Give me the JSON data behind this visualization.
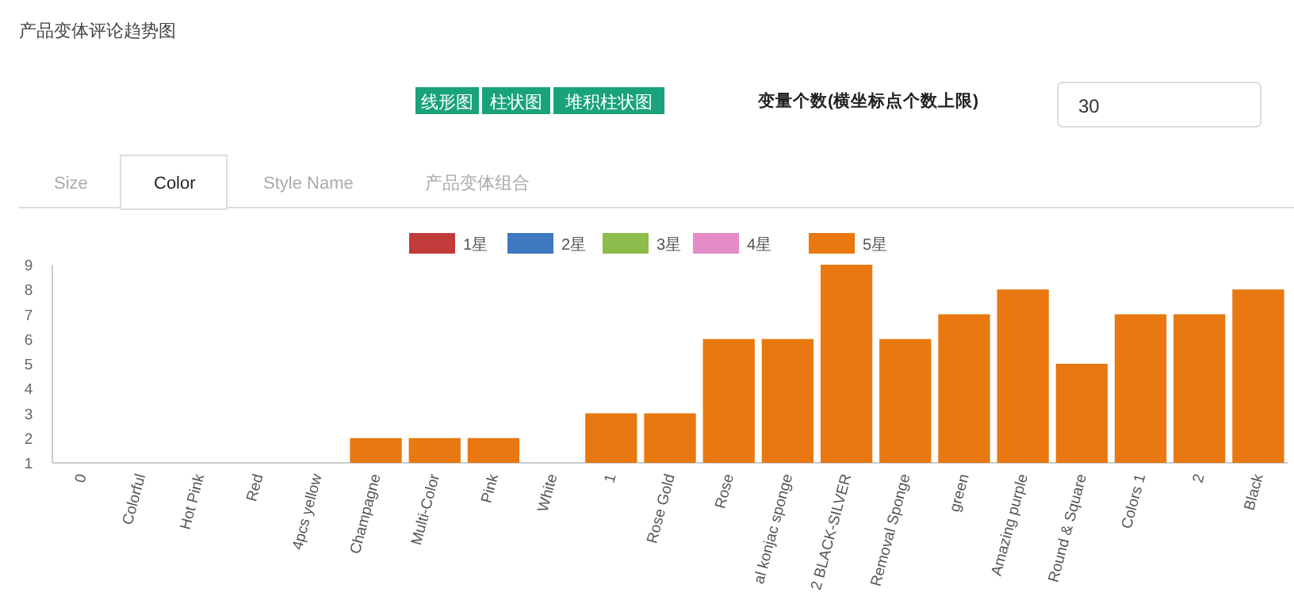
{
  "chart_data": {
    "type": "bar",
    "title": "产品变体评论趋势图",
    "annotations": [
      "线形图",
      "柱状图",
      "堆积柱状图",
      "变量个数(横坐标点个数上限)",
      "30",
      "Size",
      "Color",
      "Style Name",
      "产品变体组合"
    ],
    "categories": [
      "0",
      "Colorful",
      "Hot Pink",
      "Red",
      "4pcs yellow",
      "Champagne",
      "Multi-Color",
      "Pink",
      "White",
      "1",
      "Rose Gold",
      "Rose",
      "al konjac sponge",
      "2 BLACK-SILVER",
      "Removal Sponge",
      "green",
      "Amazing purple",
      "Round & Square",
      "Colors 1",
      "2",
      "Black"
    ],
    "series": [
      {
        "name": "1星",
        "color": "#c23b3b",
        "values": [
          null,
          null,
          null,
          null,
          null,
          null,
          null,
          null,
          null,
          null,
          null,
          null,
          null,
          null,
          null,
          null,
          null,
          null,
          null,
          null,
          null
        ]
      },
      {
        "name": "2星",
        "color": "#3f78c1",
        "values": [
          null,
          null,
          null,
          null,
          null,
          null,
          null,
          null,
          null,
          null,
          null,
          null,
          null,
          null,
          null,
          null,
          null,
          null,
          null,
          null,
          null
        ]
      },
      {
        "name": "3星",
        "color": "#8dbb4c",
        "values": [
          null,
          null,
          null,
          null,
          null,
          null,
          null,
          null,
          null,
          null,
          null,
          null,
          null,
          null,
          null,
          null,
          null,
          null,
          null,
          null,
          null
        ]
      },
      {
        "name": "4星",
        "color": "#e58cc8",
        "values": [
          null,
          null,
          null,
          null,
          null,
          null,
          null,
          null,
          null,
          null,
          null,
          null,
          null,
          null,
          null,
          null,
          null,
          null,
          null,
          null,
          null
        ]
      },
      {
        "name": "5星",
        "color": "#e8780f",
        "values": [
          1,
          1,
          1,
          1,
          1,
          2,
          2,
          2,
          1,
          3,
          3,
          6,
          6,
          9,
          6,
          7,
          8,
          5,
          7,
          7,
          8
        ]
      }
    ],
    "ylim": [
      1,
      9
    ],
    "yticks": [
      1,
      2,
      3,
      4,
      5,
      6,
      7,
      8,
      9
    ],
    "legend": "top"
  }
}
